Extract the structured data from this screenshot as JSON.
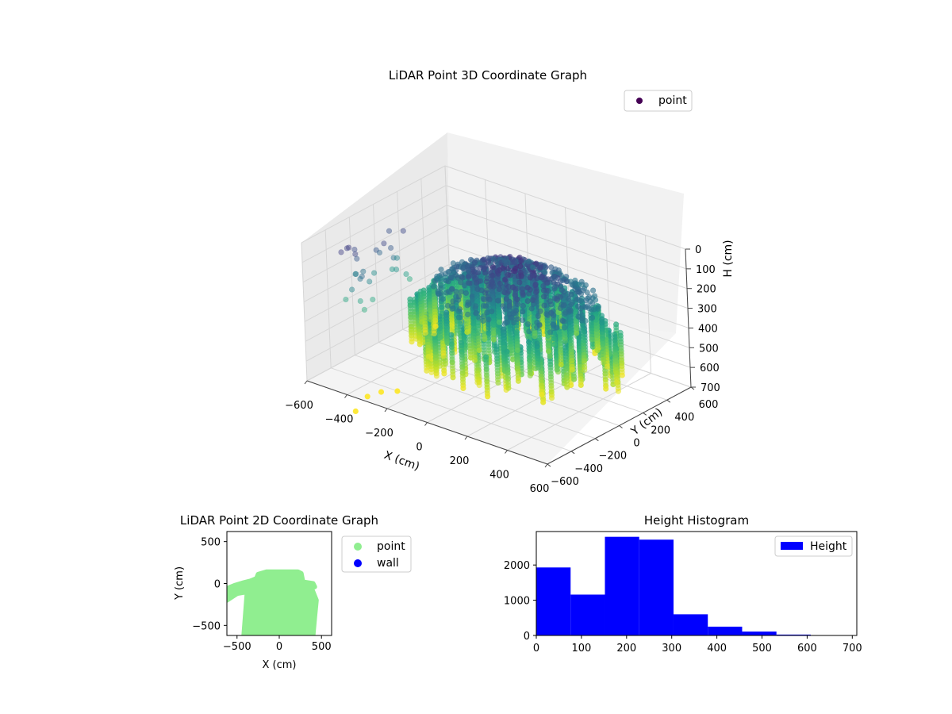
{
  "chart_data": [
    {
      "type": "scatter3d",
      "title": "LiDAR Point 3D Coordinate Graph",
      "xlabel": "X (cm)",
      "ylabel": "Y (cm)",
      "zlabel": "H (cm)",
      "x_ticks": [
        "−600",
        "−400",
        "−200",
        "0",
        "200",
        "400",
        "600"
      ],
      "y_ticks": [
        "−600",
        "−400",
        "−200",
        "0",
        "200",
        "400",
        "600"
      ],
      "z_ticks": [
        "0",
        "100",
        "200",
        "300",
        "400",
        "500",
        "600",
        "700"
      ],
      "xlim": [
        -600,
        600
      ],
      "ylim": [
        -600,
        600
      ],
      "zlim": [
        700,
        0
      ],
      "z_inverted": true,
      "grid": true,
      "colormap": "viridis",
      "legend": {
        "entries": [
          {
            "label": "point",
            "color": "#440154"
          }
        ],
        "position": "top-right"
      },
      "series": [
        {
          "name": "point",
          "note_shape": "dense cloud of vertical columns forming a dome; top (H≈0) dark purple, bottom (H≈600) green/yellow"
        }
      ]
    },
    {
      "type": "scatter",
      "title": "LiDAR Point 2D Coordinate Graph",
      "xlabel": "X (cm)",
      "ylabel": "Y (cm)",
      "x_ticks": [
        "−500",
        "0",
        "500"
      ],
      "y_ticks": [
        "−500",
        "0",
        "500"
      ],
      "xlim": [
        -620,
        620
      ],
      "ylim": [
        -620,
        620
      ],
      "legend": {
        "entries": [
          {
            "label": "point",
            "color": "#90ee90"
          },
          {
            "label": "wall",
            "color": "#0000ff"
          }
        ],
        "position": "outside-right"
      },
      "series": [
        {
          "name": "point",
          "color": "#90ee90",
          "outline": [
            [
              -620,
              -60
            ],
            [
              -620,
              -200
            ],
            [
              -500,
              -120
            ],
            [
              -380,
              -100
            ],
            [
              -420,
              -620
            ],
            [
              400,
              -620
            ],
            [
              420,
              -400
            ],
            [
              440,
              -200
            ],
            [
              380,
              -50
            ],
            [
              420,
              -40
            ],
            [
              400,
              0
            ],
            [
              280,
              20
            ],
            [
              260,
              120
            ],
            [
              220,
              140
            ],
            [
              -150,
              140
            ],
            [
              -250,
              110
            ],
            [
              -270,
              60
            ],
            [
              -340,
              30
            ],
            [
              -420,
              10
            ],
            [
              -520,
              -20
            ]
          ]
        },
        {
          "name": "wall",
          "color": "#0000ff"
        }
      ]
    },
    {
      "type": "bar",
      "title": "Height Histogram",
      "xlabel": "",
      "ylabel": "",
      "bin_edges": [
        0,
        76,
        152,
        228,
        304,
        380,
        456,
        532,
        608,
        684
      ],
      "values": [
        1930,
        1160,
        2800,
        2720,
        600,
        250,
        110,
        25,
        5
      ],
      "x_ticks": [
        "0",
        "100",
        "200",
        "300",
        "400",
        "500",
        "600",
        "700"
      ],
      "y_ticks": [
        "0",
        "1000",
        "2000"
      ],
      "xlim": [
        0,
        710
      ],
      "ylim": [
        0,
        2950
      ],
      "color": "#0000ff",
      "legend": {
        "entries": [
          {
            "label": "Height",
            "color": "#0000ff"
          }
        ],
        "position": "top-right"
      },
      "series": [
        {
          "name": "Height",
          "color": "#0000ff"
        }
      ]
    }
  ]
}
